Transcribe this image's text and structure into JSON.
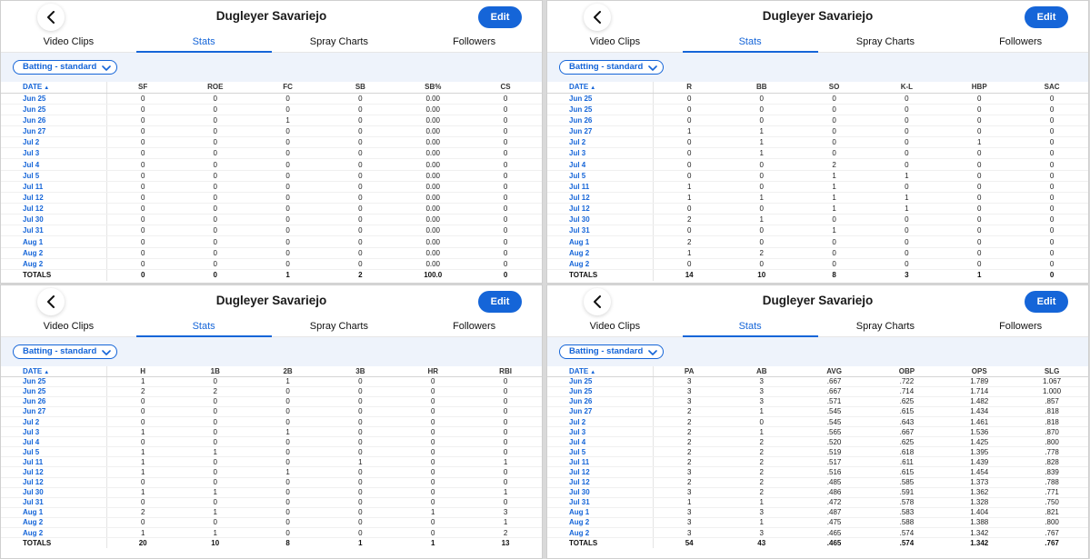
{
  "player_name": "Dugleyer Savariejo",
  "edit_label": "Edit",
  "tabs": [
    "Video Clips",
    "Stats",
    "Spray Charts",
    "Followers"
  ],
  "filter_label": "Batting - standard",
  "date_header": "DATE",
  "sort_indicator": "▲",
  "totals_label": "TOTALS",
  "dates": [
    "Jun 25",
    "Jun 25",
    "Jun 26",
    "Jun 27",
    "Jul 2",
    "Jul 3",
    "Jul 4",
    "Jul 5",
    "Jul 11",
    "Jul 12",
    "Jul 12",
    "Jul 30",
    "Jul 31",
    "Aug 1",
    "Aug 2",
    "Aug 2"
  ],
  "panels": [
    {
      "columns": [
        "SF",
        "ROE",
        "FC",
        "SB",
        "SB%",
        "CS"
      ],
      "rows": [
        [
          "0",
          "0",
          "0",
          "0",
          "0.00",
          "0"
        ],
        [
          "0",
          "0",
          "0",
          "0",
          "0.00",
          "0"
        ],
        [
          "0",
          "0",
          "1",
          "0",
          "0.00",
          "0"
        ],
        [
          "0",
          "0",
          "0",
          "0",
          "0.00",
          "0"
        ],
        [
          "0",
          "0",
          "0",
          "0",
          "0.00",
          "0"
        ],
        [
          "0",
          "0",
          "0",
          "0",
          "0.00",
          "0"
        ],
        [
          "0",
          "0",
          "0",
          "0",
          "0.00",
          "0"
        ],
        [
          "0",
          "0",
          "0",
          "0",
          "0.00",
          "0"
        ],
        [
          "0",
          "0",
          "0",
          "0",
          "0.00",
          "0"
        ],
        [
          "0",
          "0",
          "0",
          "0",
          "0.00",
          "0"
        ],
        [
          "0",
          "0",
          "0",
          "0",
          "0.00",
          "0"
        ],
        [
          "0",
          "0",
          "0",
          "0",
          "0.00",
          "0"
        ],
        [
          "0",
          "0",
          "0",
          "0",
          "0.00",
          "0"
        ],
        [
          "0",
          "0",
          "0",
          "0",
          "0.00",
          "0"
        ],
        [
          "0",
          "0",
          "0",
          "0",
          "0.00",
          "0"
        ],
        [
          "0",
          "0",
          "0",
          "0",
          "0.00",
          "0"
        ]
      ],
      "totals": [
        "0",
        "0",
        "1",
        "2",
        "100.0",
        "0"
      ]
    },
    {
      "columns": [
        "R",
        "BB",
        "SO",
        "K-L",
        "HBP",
        "SAC"
      ],
      "rows": [
        [
          "0",
          "0",
          "0",
          "0",
          "0",
          "0"
        ],
        [
          "0",
          "0",
          "0",
          "0",
          "0",
          "0"
        ],
        [
          "0",
          "0",
          "0",
          "0",
          "0",
          "0"
        ],
        [
          "1",
          "1",
          "0",
          "0",
          "0",
          "0"
        ],
        [
          "0",
          "1",
          "0",
          "0",
          "1",
          "0"
        ],
        [
          "0",
          "1",
          "0",
          "0",
          "0",
          "0"
        ],
        [
          "0",
          "0",
          "2",
          "0",
          "0",
          "0"
        ],
        [
          "0",
          "0",
          "1",
          "1",
          "0",
          "0"
        ],
        [
          "1",
          "0",
          "1",
          "0",
          "0",
          "0"
        ],
        [
          "1",
          "1",
          "1",
          "1",
          "0",
          "0"
        ],
        [
          "0",
          "0",
          "1",
          "1",
          "0",
          "0"
        ],
        [
          "2",
          "1",
          "0",
          "0",
          "0",
          "0"
        ],
        [
          "0",
          "0",
          "1",
          "0",
          "0",
          "0"
        ],
        [
          "2",
          "0",
          "0",
          "0",
          "0",
          "0"
        ],
        [
          "1",
          "2",
          "0",
          "0",
          "0",
          "0"
        ],
        [
          "0",
          "0",
          "0",
          "0",
          "0",
          "0"
        ]
      ],
      "totals": [
        "14",
        "10",
        "8",
        "3",
        "1",
        "0"
      ]
    },
    {
      "columns": [
        "H",
        "1B",
        "2B",
        "3B",
        "HR",
        "RBI"
      ],
      "rows": [
        [
          "1",
          "0",
          "1",
          "0",
          "0",
          "0"
        ],
        [
          "2",
          "2",
          "0",
          "0",
          "0",
          "0"
        ],
        [
          "0",
          "0",
          "0",
          "0",
          "0",
          "0"
        ],
        [
          "0",
          "0",
          "0",
          "0",
          "0",
          "0"
        ],
        [
          "0",
          "0",
          "0",
          "0",
          "0",
          "0"
        ],
        [
          "1",
          "0",
          "1",
          "0",
          "0",
          "0"
        ],
        [
          "0",
          "0",
          "0",
          "0",
          "0",
          "0"
        ],
        [
          "1",
          "1",
          "0",
          "0",
          "0",
          "0"
        ],
        [
          "1",
          "0",
          "0",
          "1",
          "0",
          "1"
        ],
        [
          "1",
          "0",
          "1",
          "0",
          "0",
          "0"
        ],
        [
          "0",
          "0",
          "0",
          "0",
          "0",
          "0"
        ],
        [
          "1",
          "1",
          "0",
          "0",
          "0",
          "1"
        ],
        [
          "0",
          "0",
          "0",
          "0",
          "0",
          "0"
        ],
        [
          "2",
          "1",
          "0",
          "0",
          "1",
          "3"
        ],
        [
          "0",
          "0",
          "0",
          "0",
          "0",
          "1"
        ],
        [
          "1",
          "1",
          "0",
          "0",
          "0",
          "2"
        ]
      ],
      "totals": [
        "20",
        "10",
        "8",
        "1",
        "1",
        "13"
      ]
    },
    {
      "columns": [
        "PA",
        "AB",
        "AVG",
        "OBP",
        "OPS",
        "SLG"
      ],
      "rows": [
        [
          "3",
          "3",
          ".667",
          ".722",
          "1.789",
          "1.067"
        ],
        [
          "3",
          "3",
          ".667",
          ".714",
          "1.714",
          "1.000"
        ],
        [
          "3",
          "3",
          ".571",
          ".625",
          "1.482",
          ".857"
        ],
        [
          "2",
          "1",
          ".545",
          ".615",
          "1.434",
          ".818"
        ],
        [
          "2",
          "0",
          ".545",
          ".643",
          "1.461",
          ".818"
        ],
        [
          "2",
          "1",
          ".565",
          ".667",
          "1.536",
          ".870"
        ],
        [
          "2",
          "2",
          ".520",
          ".625",
          "1.425",
          ".800"
        ],
        [
          "2",
          "2",
          ".519",
          ".618",
          "1.395",
          ".778"
        ],
        [
          "2",
          "2",
          ".517",
          ".611",
          "1.439",
          ".828"
        ],
        [
          "3",
          "2",
          ".516",
          ".615",
          "1.454",
          ".839"
        ],
        [
          "2",
          "2",
          ".485",
          ".585",
          "1.373",
          ".788"
        ],
        [
          "3",
          "2",
          ".486",
          ".591",
          "1.362",
          ".771"
        ],
        [
          "1",
          "1",
          ".472",
          ".578",
          "1.328",
          ".750"
        ],
        [
          "3",
          "3",
          ".487",
          ".583",
          "1.404",
          ".821"
        ],
        [
          "3",
          "1",
          ".475",
          ".588",
          "1.388",
          ".800"
        ],
        [
          "3",
          "3",
          ".465",
          ".574",
          "1.342",
          ".767"
        ]
      ],
      "totals": [
        "54",
        "43",
        ".465",
        ".574",
        "1.342",
        ".767"
      ]
    }
  ]
}
